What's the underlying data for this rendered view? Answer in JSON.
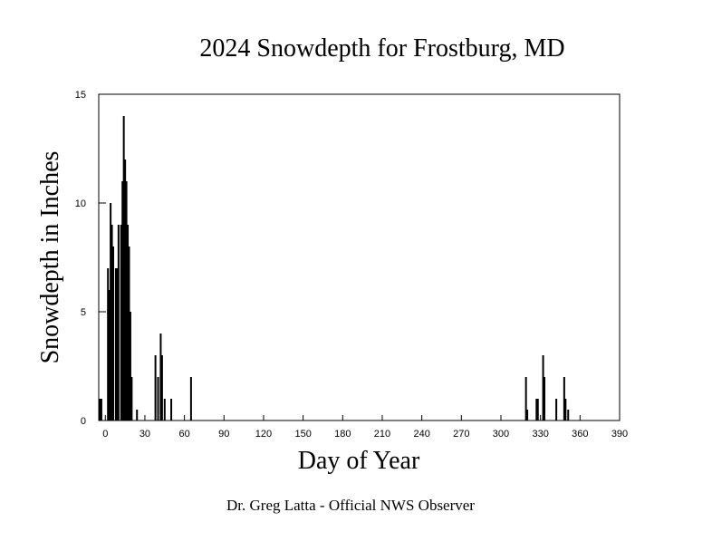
{
  "chart_data": {
    "type": "bar",
    "title": "2024 Snowdepth for Frostburg, MD",
    "xlabel": "Day of Year",
    "ylabel": "Snowdepth in Inches",
    "footer": "Dr. Greg Latta - Official NWS Observer",
    "x": [
      -4,
      -3,
      2,
      3,
      4,
      5,
      6,
      8,
      9,
      10,
      12,
      13,
      14,
      15,
      16,
      17,
      18,
      19,
      20,
      24,
      38,
      40,
      42,
      43,
      45,
      50,
      65,
      319,
      320,
      327,
      328,
      332,
      333,
      342,
      348,
      349,
      351
    ],
    "values": [
      1,
      1,
      7,
      6,
      10,
      9,
      8,
      7,
      7,
      9,
      9,
      11,
      14,
      12,
      11,
      9,
      8,
      5,
      2,
      0.5,
      3,
      2,
      4,
      3,
      1,
      1,
      2,
      2,
      0.5,
      1,
      1,
      3,
      2,
      1,
      2,
      1,
      0.5
    ],
    "color": "#000000",
    "xlim": [
      -5,
      390
    ],
    "ylim": [
      0,
      15
    ],
    "xticks": [
      0,
      30,
      60,
      90,
      120,
      150,
      180,
      210,
      240,
      270,
      300,
      330,
      360,
      390
    ],
    "yticks": [
      0,
      5,
      10,
      15
    ]
  }
}
